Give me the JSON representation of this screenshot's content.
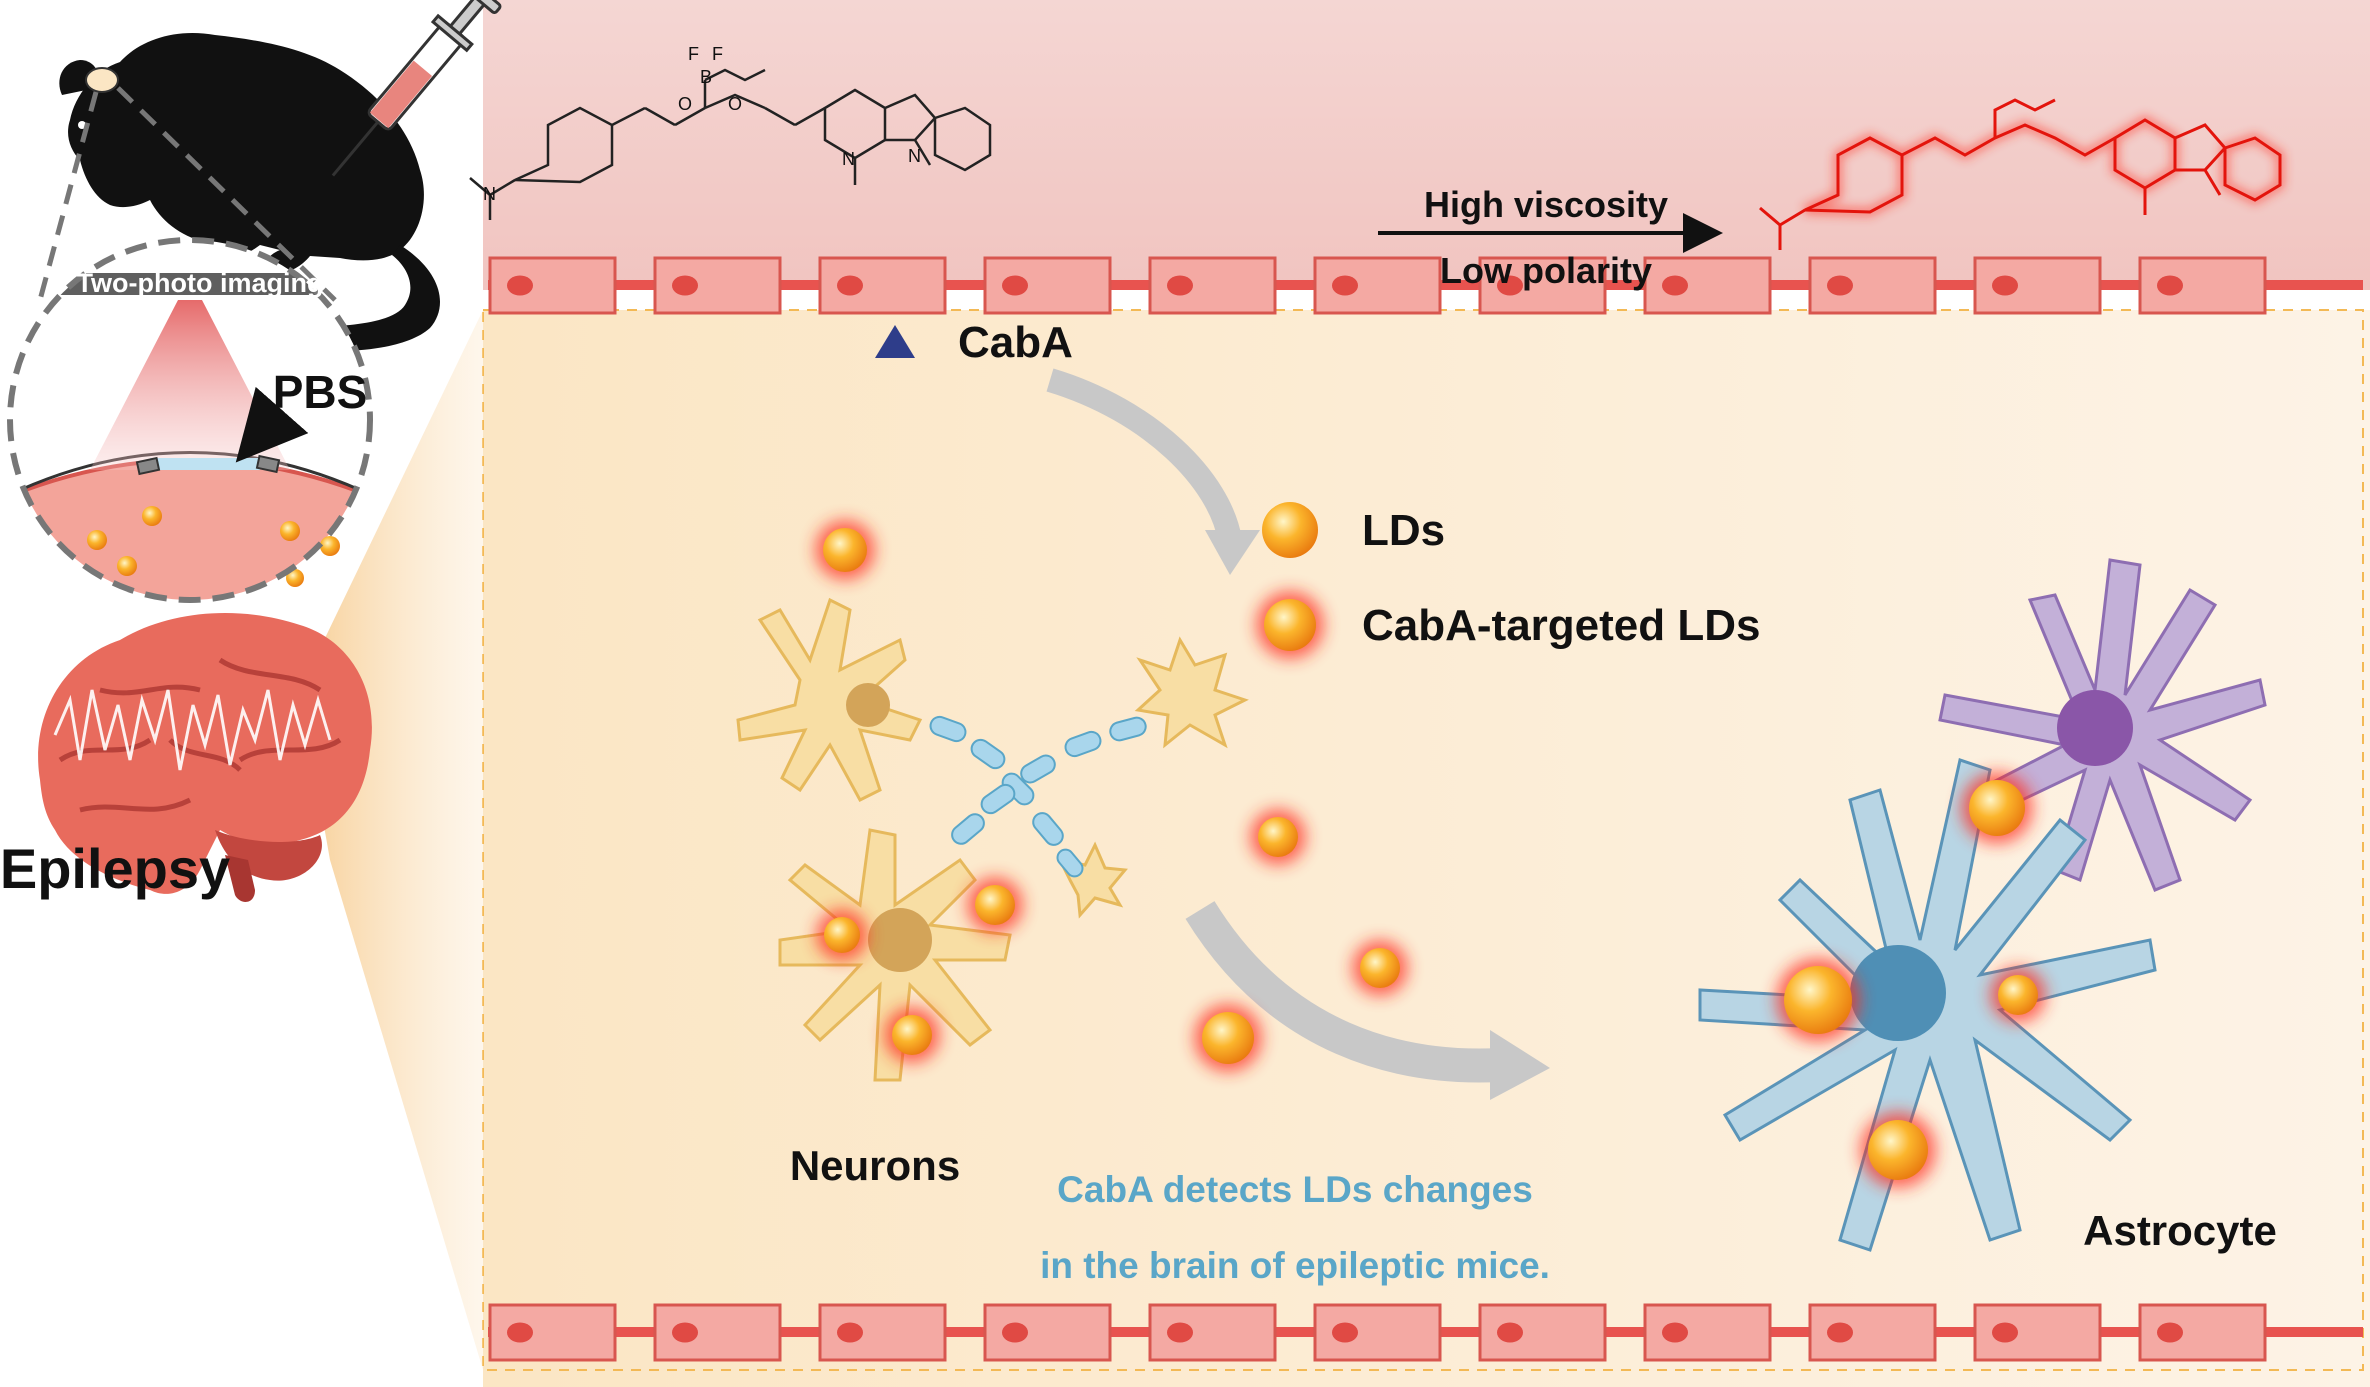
{
  "left_panel": {
    "imaging_label": "Two-photo imaging",
    "pbs_label": "PBS",
    "disease_label": "Epilepsy"
  },
  "chemistry": {
    "probe_label": "CabA",
    "condition_top": "High viscosity",
    "condition_bottom": "Low polarity",
    "atom_labels": {
      "fluorine": "F",
      "boron": "B",
      "oxygen": "O",
      "nitrogen": "N",
      "plus": "+",
      "minus": "-"
    }
  },
  "legend": {
    "lds": "LDs",
    "caba_lds": "CabA-targeted LDs"
  },
  "cells": {
    "neurons": "Neurons",
    "astrocyte": "Astrocyte"
  },
  "caption": {
    "line1": "CabA detects LDs changes",
    "line2": "in the brain of epileptic mice."
  },
  "colors": {
    "bbb_red": "#e8534f",
    "cell_fill": "#f4a9a3",
    "neuron_fill": "#f8d68a",
    "astro_blue": "#a9cde0",
    "astro_purple": "#b49bc9",
    "caption_blue": "#5aa6c8",
    "glow_red": "#ff2a1a",
    "ld_orange": "#f7a21c"
  }
}
